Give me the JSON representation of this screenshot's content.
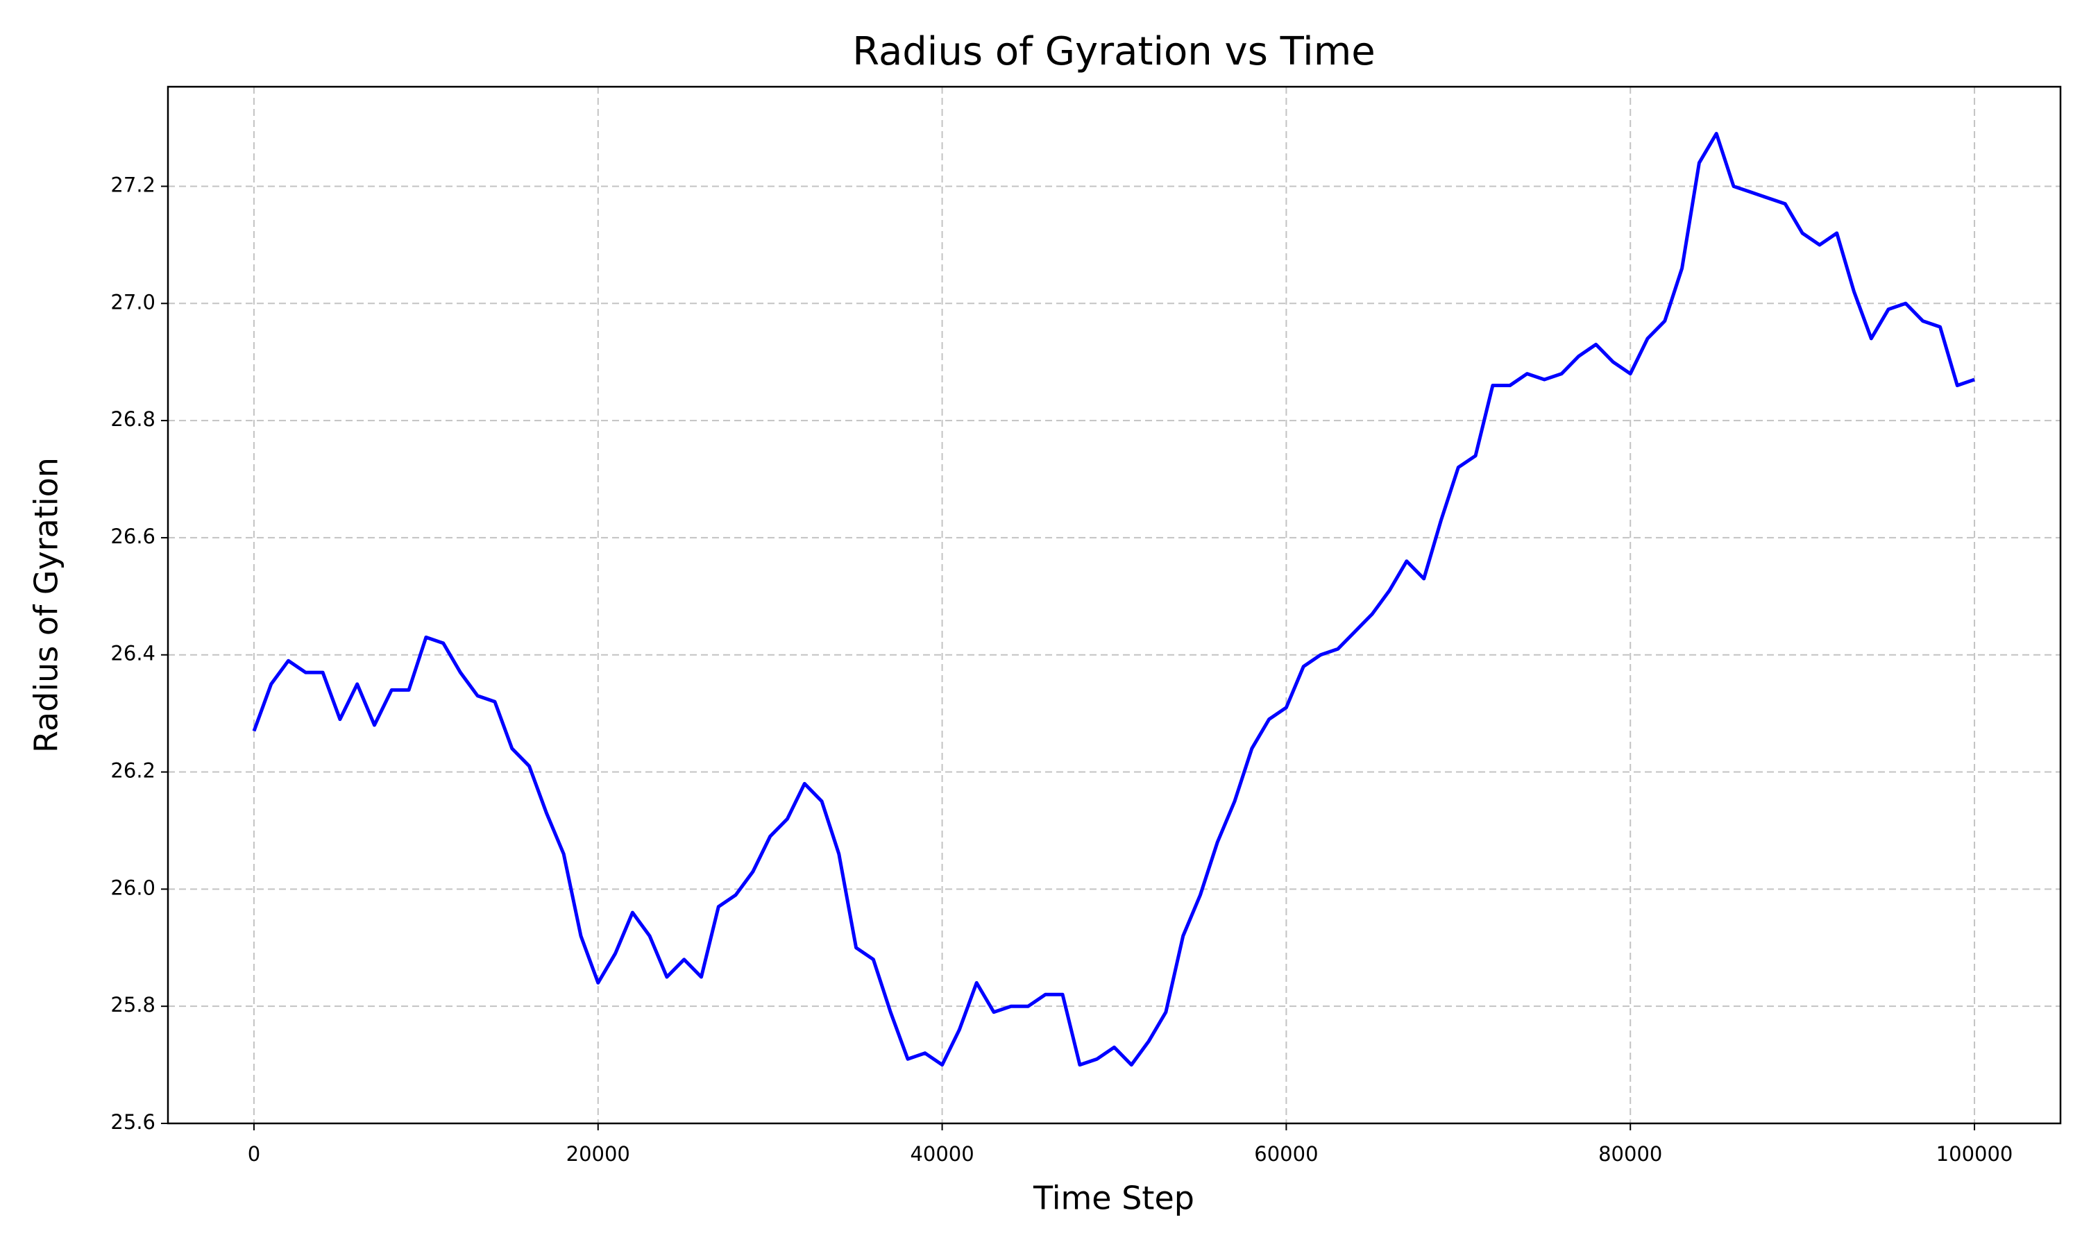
{
  "chart_data": {
    "type": "line",
    "title": "Radius of Gyration vs Time",
    "xlabel": "Time Step",
    "ylabel": "Radius of Gyration",
    "x": [
      0,
      1000,
      2000,
      3000,
      4000,
      5000,
      6000,
      7000,
      8000,
      9000,
      10000,
      11000,
      12000,
      13000,
      14000,
      15000,
      16000,
      17000,
      18000,
      19000,
      20000,
      21000,
      22000,
      23000,
      24000,
      25000,
      26000,
      27000,
      28000,
      29000,
      30000,
      31000,
      32000,
      33000,
      34000,
      35000,
      36000,
      37000,
      38000,
      39000,
      40000,
      41000,
      42000,
      43000,
      44000,
      45000,
      46000,
      47000,
      48000,
      49000,
      50000,
      51000,
      52000,
      53000,
      54000,
      55000,
      56000,
      57000,
      58000,
      59000,
      60000,
      61000,
      62000,
      63000,
      64000,
      65000,
      66000,
      67000,
      68000,
      69000,
      70000,
      71000,
      72000,
      73000,
      74000,
      75000,
      76000,
      77000,
      78000,
      79000,
      80000,
      81000,
      82000,
      83000,
      84000,
      85000,
      86000,
      87000,
      88000,
      89000,
      90000,
      91000,
      92000,
      93000,
      94000,
      95000,
      96000,
      97000,
      98000,
      99000,
      100000
    ],
    "series": [
      {
        "name": "Radius of Gyration",
        "color": "#0000ff",
        "values": [
          26.27,
          26.35,
          26.39,
          26.37,
          26.37,
          26.29,
          26.35,
          26.28,
          26.34,
          26.34,
          26.43,
          26.42,
          26.37,
          26.33,
          26.32,
          26.24,
          26.21,
          26.13,
          26.06,
          25.92,
          25.84,
          25.89,
          25.96,
          25.92,
          25.85,
          25.88,
          25.85,
          25.97,
          25.99,
          26.03,
          26.09,
          26.12,
          26.18,
          26.15,
          26.06,
          25.9,
          25.88,
          25.79,
          25.71,
          25.72,
          25.7,
          25.76,
          25.84,
          25.79,
          25.8,
          25.8,
          25.82,
          25.82,
          25.7,
          25.71,
          25.73,
          25.7,
          25.74,
          25.79,
          25.92,
          25.99,
          26.08,
          26.15,
          26.24,
          26.29,
          26.31,
          26.38,
          26.4,
          26.41,
          26.44,
          26.47,
          26.51,
          26.56,
          26.53,
          26.63,
          26.72,
          26.74,
          26.86,
          26.86,
          26.88,
          26.87,
          26.88,
          26.91,
          26.93,
          26.9,
          26.88,
          26.94,
          26.97,
          27.06,
          27.24,
          27.29,
          27.2,
          27.19,
          27.18,
          27.17,
          27.12,
          27.1,
          27.12,
          27.02,
          26.94,
          26.99,
          27.0,
          26.97,
          26.96,
          26.86,
          26.87
        ]
      }
    ],
    "xlim": [
      -5000,
      105000
    ],
    "xticks": [
      0,
      20000,
      40000,
      60000,
      80000,
      100000
    ],
    "ylim": [
      25.6,
      27.37
    ],
    "yticks": [
      25.6,
      25.8,
      {
        "value": 26.0,
        "label": "26.0"
      },
      26.2,
      26.4,
      26.6,
      26.8,
      {
        "value": 27.0,
        "label": "27.0"
      },
      27.2
    ],
    "grid": true
  }
}
